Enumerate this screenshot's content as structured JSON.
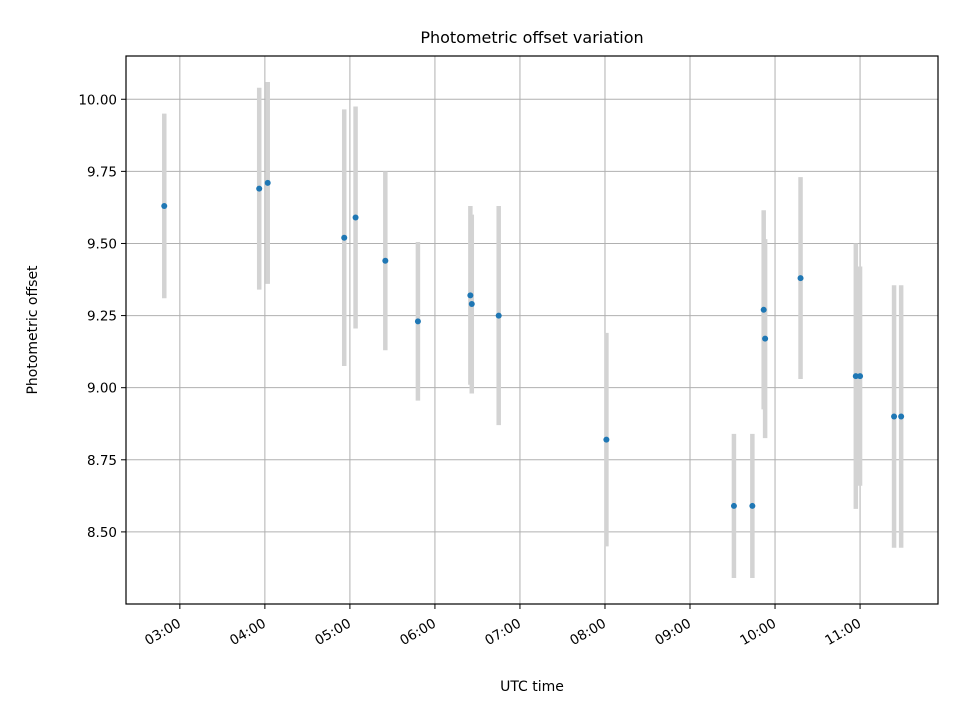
{
  "chart_data": {
    "type": "scatter",
    "title": "Photometric offset variation",
    "xlabel": "UTC time",
    "ylabel": "Photometric offset",
    "x_ticks": [
      "03:00",
      "04:00",
      "05:00",
      "06:00",
      "07:00",
      "08:00",
      "09:00",
      "10:00",
      "11:00"
    ],
    "y_ticks": [
      "8.50",
      "8.75",
      "9.00",
      "9.25",
      "9.50",
      "9.75",
      "10.00"
    ],
    "xlim": [
      "02:22",
      "11:55"
    ],
    "ylim": [
      8.25,
      10.15
    ],
    "grid": true,
    "legend": "none",
    "colors": {
      "points": "#1f77b4",
      "error_bars": "#d3d3d3",
      "grid": "#b0b0b0"
    },
    "points": [
      {
        "x": "02:49",
        "y": 9.63,
        "err": 0.32
      },
      {
        "x": "03:56",
        "y": 9.69,
        "err": 0.35
      },
      {
        "x": "04:02",
        "y": 9.71,
        "err": 0.35
      },
      {
        "x": "04:56",
        "y": 9.52,
        "err": 0.445
      },
      {
        "x": "05:04",
        "y": 9.59,
        "err": 0.385
      },
      {
        "x": "05:25",
        "y": 9.44,
        "err": 0.31
      },
      {
        "x": "05:48",
        "y": 9.23,
        "err": 0.275
      },
      {
        "x": "06:25",
        "y": 9.32,
        "err": 0.31
      },
      {
        "x": "06:26",
        "y": 9.29,
        "err": 0.31
      },
      {
        "x": "06:45",
        "y": 9.25,
        "err": 0.38
      },
      {
        "x": "08:01",
        "y": 8.82,
        "err": 0.37
      },
      {
        "x": "09:31",
        "y": 8.59,
        "err": 0.25
      },
      {
        "x": "09:44",
        "y": 8.59,
        "err": 0.25
      },
      {
        "x": "09:52",
        "y": 9.27,
        "err": 0.345
      },
      {
        "x": "09:53",
        "y": 9.17,
        "err": 0.345
      },
      {
        "x": "10:18",
        "y": 9.38,
        "err": 0.35
      },
      {
        "x": "10:57",
        "y": 9.04,
        "err": 0.46
      },
      {
        "x": "11:00",
        "y": 9.04,
        "err": 0.38
      },
      {
        "x": "11:24",
        "y": 8.9,
        "err": 0.455
      },
      {
        "x": "11:29",
        "y": 8.9,
        "err": 0.455
      }
    ]
  }
}
